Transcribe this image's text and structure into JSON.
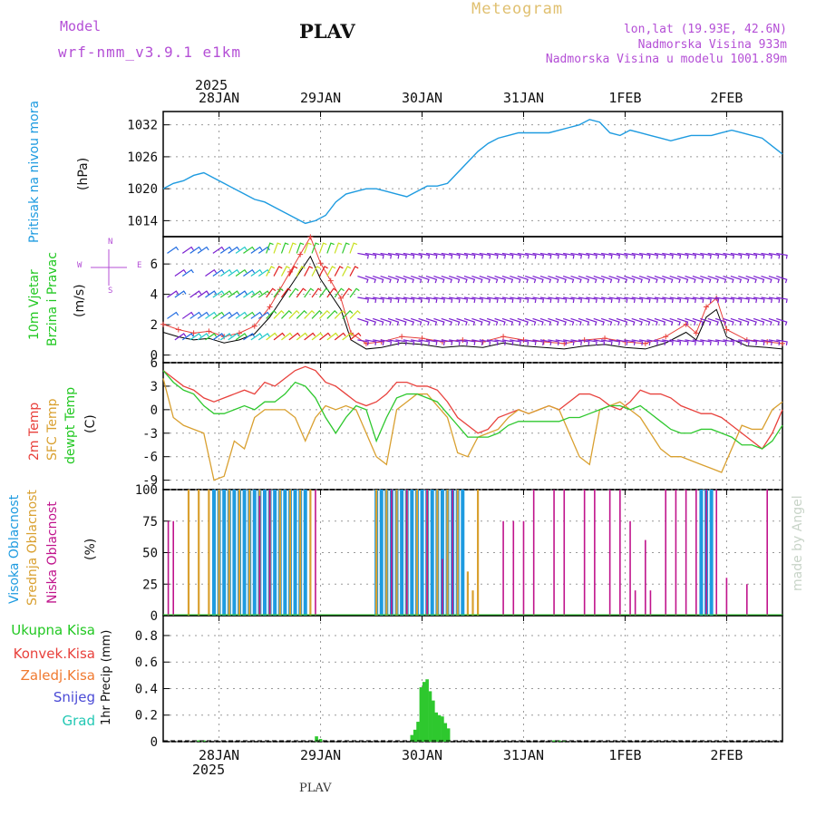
{
  "header": {
    "model_label": "Model",
    "model_name": "wrf-nmm_v3.9.1 e1km",
    "station": "PLAV",
    "title": "Meteogram",
    "lonlat": "lon,lat (19.93E, 42.6N)",
    "elevation": "Nadmorska Visina 933m",
    "model_elevation": "Nadmorska Visina u modelu 1001.89m",
    "footer_station": "PLAV",
    "credit": "made by Angel"
  },
  "colors": {
    "pressure": "#1e9be0",
    "temp2m": "#e8413c",
    "sfc_temp": "#d9a030",
    "dewpt": "#2ec82e",
    "cloud_high": "#1e9be0",
    "cloud_mid": "#d9a030",
    "cloud_low": "#c0148c",
    "precip_total": "#2ec82e",
    "header_purple": "#b44fd6",
    "title_gold": "#e0c070",
    "wind_label": "#22c822"
  },
  "x_axis": {
    "top_year": "2025",
    "top_labels": [
      "28JAN",
      "29JAN",
      "30JAN",
      "31JAN",
      "1FEB",
      "2FEB"
    ],
    "bottom_labels": [
      "28JAN",
      "29JAN",
      "30JAN",
      "31JAN",
      "1FEB",
      "2FEB"
    ],
    "bottom_year": "2025",
    "day_range": [
      -0.55,
      5.55
    ]
  },
  "panels": {
    "pressure": {
      "label_main": "Pritisak na nivou mora",
      "label_unit": "(hPa)",
      "ticks": [
        "1032",
        "1026",
        "1020",
        "1014"
      ]
    },
    "wind": {
      "label_a": "10m Vjetar",
      "label_b": "Brzina i Pravac",
      "label_unit": "(m/s)",
      "compass_n": "N",
      "compass_w": "W",
      "compass_e": "E",
      "compass_s": "S",
      "ticks": [
        "6",
        "4",
        "2",
        "0"
      ]
    },
    "temperature": {
      "label_a": "2m Temp",
      "label_b": "SFC Temp",
      "label_c": "dewpt Temp",
      "label_unit": "(C)",
      "ticks": [
        "6",
        "3",
        "0",
        "-3",
        "-6",
        "-9"
      ]
    },
    "clouds": {
      "label_a": "Visoka Oblacnost",
      "label_b": "Srednja Oblacnost",
      "label_c": "Niska Oblacnost",
      "label_unit": "(%)",
      "ticks": [
        "100",
        "75",
        "50",
        "25",
        "0"
      ]
    },
    "precip": {
      "legend": [
        "Ukupna Kisa",
        "Konvek.Kisa",
        "Zaledj.Kisa",
        "Snijeg",
        "Grad"
      ],
      "label_unit": "1hr Precip (mm)",
      "ticks": [
        "0.8",
        "0.6",
        "0.4",
        "0.2",
        "0"
      ]
    }
  },
  "chart_data": [
    {
      "type": "line",
      "title": "",
      "ylabel": "(hPa)",
      "ylim": [
        1011,
        1034.5
      ],
      "series": [
        {
          "name": "Pritisak na nivou mora",
          "x": [
            -0.55,
            -0.45,
            -0.35,
            -0.25,
            -0.15,
            -0.05,
            0.05,
            0.15,
            0.25,
            0.35,
            0.45,
            0.55,
            0.65,
            0.75,
            0.85,
            0.95,
            1.05,
            1.15,
            1.25,
            1.35,
            1.45,
            1.55,
            1.65,
            1.75,
            1.85,
            1.95,
            2.05,
            2.15,
            2.25,
            2.35,
            2.45,
            2.55,
            2.65,
            2.75,
            2.85,
            2.95,
            3.05,
            3.15,
            3.25,
            3.35,
            3.45,
            3.55,
            3.65,
            3.75,
            3.85,
            3.95,
            4.05,
            4.15,
            4.25,
            4.35,
            4.45,
            4.55,
            4.65,
            4.75,
            4.85,
            4.95,
            5.05,
            5.15,
            5.25,
            5.35,
            5.45,
            5.55
          ],
          "y": [
            1020,
            1021,
            1021.5,
            1022.5,
            1023,
            1022,
            1021,
            1020,
            1019,
            1018,
            1017.5,
            1016.5,
            1015.5,
            1014.5,
            1013.5,
            1014,
            1015,
            1017.5,
            1019,
            1019.5,
            1020,
            1020,
            1019.5,
            1019,
            1018.5,
            1019.5,
            1020.5,
            1020.5,
            1021,
            1023,
            1025,
            1027,
            1028.5,
            1029.5,
            1030,
            1030.5,
            1030.5,
            1030.5,
            1030.5,
            1031,
            1031.5,
            1032,
            1033,
            1032.5,
            1030.5,
            1030,
            1031,
            1030.5,
            1030,
            1029.5,
            1029,
            1029.5,
            1030,
            1030,
            1030,
            1030.5,
            1031,
            1030.5,
            1030,
            1029.5,
            1028,
            1026.5
          ]
        }
      ]
    },
    {
      "type": "line",
      "title": "",
      "ylabel": "(m/s)",
      "ylim": [
        -0.5,
        7.8
      ],
      "series": [
        {
          "name": "10m Vjetar",
          "x": [
            -0.55,
            -0.4,
            -0.25,
            -0.1,
            0.05,
            0.2,
            0.35,
            0.5,
            0.6,
            0.7,
            0.8,
            0.9,
            1.0,
            1.1,
            1.2,
            1.3,
            1.45,
            1.6,
            1.8,
            2.0,
            2.2,
            2.4,
            2.6,
            2.8,
            3.0,
            3.2,
            3.4,
            3.6,
            3.8,
            4.0,
            4.2,
            4.4,
            4.6,
            4.7,
            4.8,
            4.9,
            5.0,
            5.2,
            5.4,
            5.55
          ],
          "y": [
            1.5,
            1.2,
            1.0,
            1.1,
            0.8,
            1.0,
            1.4,
            2.5,
            3.5,
            4.5,
            5.5,
            6.5,
            5.0,
            4.0,
            3.0,
            1.0,
            0.4,
            0.5,
            0.8,
            0.7,
            0.5,
            0.6,
            0.5,
            0.8,
            0.6,
            0.5,
            0.4,
            0.6,
            0.7,
            0.5,
            0.4,
            0.8,
            1.5,
            1.0,
            2.5,
            3.0,
            1.2,
            0.6,
            0.5,
            0.4
          ]
        }
      ]
    },
    {
      "type": "line",
      "title": "",
      "ylabel": "(C)",
      "ylim": [
        -10.2,
        6
      ],
      "x": [
        -0.55,
        -0.45,
        -0.35,
        -0.25,
        -0.15,
        -0.05,
        0.05,
        0.15,
        0.25,
        0.35,
        0.45,
        0.55,
        0.65,
        0.75,
        0.85,
        0.95,
        1.05,
        1.15,
        1.25,
        1.35,
        1.45,
        1.55,
        1.65,
        1.75,
        1.85,
        1.95,
        2.05,
        2.15,
        2.25,
        2.35,
        2.45,
        2.55,
        2.65,
        2.75,
        2.85,
        2.95,
        3.05,
        3.15,
        3.25,
        3.35,
        3.45,
        3.55,
        3.65,
        3.75,
        3.85,
        3.95,
        4.05,
        4.15,
        4.25,
        4.35,
        4.45,
        4.55,
        4.65,
        4.75,
        4.85,
        4.95,
        5.05,
        5.15,
        5.25,
        5.35,
        5.45,
        5.55
      ],
      "series": [
        {
          "name": "2m Temp",
          "y": [
            5,
            4,
            3,
            2.5,
            1.5,
            1,
            1.5,
            2,
            2.5,
            2,
            3.5,
            3,
            4,
            5,
            5.5,
            5,
            3.5,
            3,
            2,
            1,
            0.5,
            1,
            2,
            3.5,
            3.5,
            3,
            3,
            2.5,
            1,
            -1,
            -2,
            -3,
            -2.5,
            -1,
            -0.5,
            0,
            -0.5,
            0,
            0.5,
            0,
            1,
            2,
            2,
            1.5,
            0.5,
            0,
            1,
            2.5,
            2,
            2,
            1.5,
            0.5,
            0,
            -0.5,
            -0.5,
            -1,
            -2,
            -3,
            -4,
            -5,
            -3,
            0
          ]
        },
        {
          "name": "SFC Temp",
          "y": [
            4,
            -1,
            -2,
            -2.5,
            -3,
            -9,
            -8.5,
            -4,
            -5,
            -1,
            0,
            0,
            0,
            -1,
            -4,
            -1,
            0.5,
            0,
            0.5,
            0,
            -3,
            -6,
            -7,
            0,
            1,
            2,
            2,
            0.5,
            -1,
            -5.5,
            -6,
            -3.5,
            -3,
            -2.5,
            -1,
            0,
            -0.5,
            0,
            0.5,
            0,
            -3,
            -6,
            -7,
            0,
            0.5,
            1,
            0,
            -1,
            -3,
            -5,
            -6,
            -6,
            -6.5,
            -7,
            -7.5,
            -8,
            -5,
            -2,
            -2.5,
            -2.5,
            0,
            1
          ]
        },
        {
          "name": "dewpt Temp",
          "y": [
            5,
            3.5,
            2.5,
            2,
            0.5,
            -0.5,
            -0.5,
            0,
            0.5,
            0,
            1,
            1,
            2,
            3.5,
            3,
            1.5,
            -1,
            -3,
            -1,
            0.5,
            0,
            -4,
            -1,
            1.5,
            2,
            2,
            1.5,
            1,
            -0.5,
            -2,
            -3.5,
            -3.5,
            -3.5,
            -3,
            -2,
            -1.5,
            -1.5,
            -1.5,
            -1.5,
            -1.5,
            -1,
            -1,
            -0.5,
            0,
            0.5,
            0.5,
            0,
            0.5,
            -0.5,
            -1.5,
            -2.5,
            -3,
            -3,
            -2.5,
            -2.5,
            -3,
            -3.5,
            -4.5,
            -4.5,
            -5,
            -4,
            -2
          ]
        }
      ]
    },
    {
      "type": "bar",
      "title": "",
      "ylabel": "(%)",
      "ylim": [
        0,
        100
      ],
      "series": [
        {
          "name": "Visoka Oblacnost",
          "x": [
            -0.05,
            0,
            0.05,
            0.1,
            0.15,
            0.2,
            0.25,
            0.3,
            0.35,
            0.4,
            0.45,
            0.5,
            0.55,
            0.6,
            0.65,
            0.7,
            0.75,
            0.8,
            0.85,
            1.55,
            1.6,
            1.65,
            1.7,
            1.75,
            1.8,
            1.85,
            1.9,
            1.95,
            2.0,
            2.05,
            2.1,
            2.15,
            2.2,
            2.25,
            2.3,
            2.35,
            2.4,
            4.75,
            4.8,
            4.85
          ],
          "y": [
            100,
            100,
            100,
            100,
            100,
            100,
            100,
            100,
            100,
            100,
            100,
            100,
            100,
            100,
            100,
            100,
            100,
            100,
            100,
            100,
            100,
            100,
            100,
            100,
            100,
            100,
            100,
            100,
            100,
            100,
            100,
            100,
            100,
            100,
            100,
            100,
            100,
            100,
            100,
            100
          ]
        },
        {
          "name": "Srednja Oblacnost",
          "x": [
            -0.3,
            -0.2,
            -0.1,
            0.0,
            0.1,
            0.2,
            0.3,
            0.4,
            0.5,
            0.6,
            0.7,
            0.8,
            0.9,
            1.55,
            1.65,
            1.75,
            1.85,
            1.95,
            2.05,
            2.15,
            2.25,
            2.35,
            2.45,
            2.5,
            2.55
          ],
          "y": [
            100,
            100,
            100,
            100,
            100,
            100,
            100,
            100,
            100,
            100,
            100,
            100,
            100,
            100,
            100,
            100,
            100,
            100,
            100,
            100,
            100,
            100,
            35,
            20,
            100
          ]
        },
        {
          "name": "Niska Oblacnost",
          "x": [
            -0.5,
            -0.45,
            0.4,
            0.5,
            0.95,
            1.7,
            1.85,
            2.05,
            2.2,
            2.3,
            2.8,
            2.9,
            3.0,
            3.1,
            3.3,
            3.4,
            3.6,
            3.7,
            3.85,
            3.95,
            4.05,
            4.1,
            4.2,
            4.25,
            4.4,
            4.5,
            4.6,
            4.7,
            4.8,
            4.9,
            5.0,
            5.2,
            5.4
          ],
          "y": [
            75,
            75,
            95,
            100,
            100,
            100,
            100,
            100,
            45,
            100,
            75,
            75,
            75,
            100,
            100,
            100,
            100,
            100,
            100,
            100,
            75,
            20,
            60,
            20,
            100,
            100,
            100,
            100,
            100,
            100,
            30,
            25,
            100
          ]
        }
      ]
    },
    {
      "type": "bar",
      "title": "",
      "ylabel": "1hr Precip (mm)",
      "ylim": [
        0,
        0.95
      ],
      "series": [
        {
          "name": "Ukupna Kisa",
          "x": [
            -0.2,
            -0.15,
            0.96,
            1.0,
            1.9,
            1.93,
            1.96,
            1.99,
            2.02,
            2.05,
            2.08,
            2.11,
            2.14,
            2.17,
            2.2,
            2.23,
            2.26,
            3.3,
            3.35,
            3.4
          ],
          "y": [
            0.01,
            0.01,
            0.04,
            0.02,
            0.05,
            0.09,
            0.15,
            0.41,
            0.45,
            0.47,
            0.38,
            0.31,
            0.22,
            0.2,
            0.19,
            0.14,
            0.1,
            0.01,
            0.01,
            0.01
          ]
        }
      ]
    }
  ]
}
